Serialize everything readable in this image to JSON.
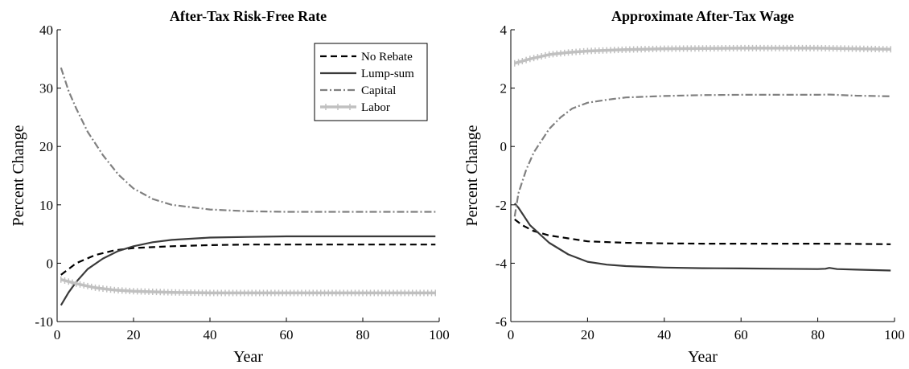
{
  "chart_data": [
    {
      "type": "line",
      "title": "After-Tax Risk-Free Rate",
      "xlabel": "Year",
      "ylabel": "Percent Change",
      "xlim": [
        0,
        100
      ],
      "ylim": [
        -10,
        40
      ],
      "xticks": [
        0,
        20,
        40,
        60,
        80,
        100
      ],
      "yticks": [
        -10,
        0,
        10,
        20,
        30,
        40
      ],
      "grid": false,
      "legend": {
        "position": "top-right",
        "entries": [
          "No Rebate",
          "Lump-sum",
          "Capital",
          "Labor"
        ]
      },
      "series": [
        {
          "name": "No Rebate",
          "style": "dashed",
          "color": "#000000",
          "x": [
            1,
            5,
            10,
            15,
            20,
            30,
            40,
            50,
            60,
            70,
            80,
            90,
            99
          ],
          "y": [
            -2.0,
            0.0,
            1.4,
            2.2,
            2.6,
            2.9,
            3.1,
            3.2,
            3.2,
            3.2,
            3.2,
            3.2,
            3.2
          ]
        },
        {
          "name": "Lump-sum",
          "style": "solid",
          "color": "#3a3a3a",
          "x": [
            1,
            3,
            5,
            8,
            12,
            16,
            20,
            25,
            30,
            40,
            50,
            60,
            70,
            80,
            90,
            99
          ],
          "y": [
            -7.2,
            -5.0,
            -3.2,
            -1.0,
            0.8,
            2.1,
            2.9,
            3.6,
            4.0,
            4.4,
            4.5,
            4.6,
            4.6,
            4.6,
            4.6,
            4.6
          ]
        },
        {
          "name": "Capital",
          "style": "dashdot",
          "color": "#808080",
          "x": [
            1,
            3,
            5,
            8,
            12,
            16,
            20,
            25,
            30,
            40,
            50,
            60,
            70,
            80,
            90,
            99
          ],
          "y": [
            33.5,
            29.5,
            26.5,
            22.5,
            18.5,
            15.2,
            12.8,
            11.0,
            10.0,
            9.2,
            8.9,
            8.8,
            8.8,
            8.8,
            8.8,
            8.8
          ]
        },
        {
          "name": "Labor",
          "style": "marker",
          "color": "#c0c0c0",
          "x": [
            1,
            5,
            10,
            15,
            20,
            30,
            40,
            50,
            60,
            70,
            80,
            90,
            99
          ],
          "y": [
            -2.8,
            -3.5,
            -4.2,
            -4.6,
            -4.8,
            -5.0,
            -5.1,
            -5.1,
            -5.1,
            -5.1,
            -5.1,
            -5.1,
            -5.1
          ]
        }
      ]
    },
    {
      "type": "line",
      "title": "Approximate After-Tax Wage",
      "xlabel": "Year",
      "ylabel": "Percent Change",
      "xlim": [
        0,
        100
      ],
      "ylim": [
        -6,
        4
      ],
      "xticks": [
        0,
        20,
        40,
        60,
        80,
        100
      ],
      "yticks": [
        -6,
        -4,
        -2,
        0,
        2,
        4
      ],
      "grid": false,
      "series": [
        {
          "name": "No Rebate",
          "style": "dashed",
          "color": "#000000",
          "x": [
            1,
            3,
            6,
            10,
            15,
            20,
            30,
            40,
            50,
            60,
            70,
            80,
            90,
            99
          ],
          "y": [
            -2.5,
            -2.7,
            -2.9,
            -3.05,
            -3.15,
            -3.25,
            -3.3,
            -3.32,
            -3.33,
            -3.33,
            -3.33,
            -3.33,
            -3.34,
            -3.35
          ]
        },
        {
          "name": "Lump-sum",
          "style": "solid",
          "color": "#3a3a3a",
          "x": [
            1,
            2,
            5,
            10,
            15,
            20,
            25,
            30,
            40,
            50,
            60,
            70,
            80,
            82,
            83,
            85,
            90,
            99
          ],
          "y": [
            -1.95,
            -2.1,
            -2.7,
            -3.3,
            -3.7,
            -3.95,
            -4.05,
            -4.1,
            -4.15,
            -4.17,
            -4.18,
            -4.19,
            -4.2,
            -4.19,
            -4.16,
            -4.2,
            -4.22,
            -4.25
          ]
        },
        {
          "name": "Capital",
          "style": "dashdot",
          "color": "#808080",
          "x": [
            1,
            2,
            4,
            6,
            8,
            10,
            13,
            16,
            20,
            25,
            30,
            40,
            50,
            60,
            70,
            80,
            83,
            90,
            99
          ],
          "y": [
            -2.4,
            -1.6,
            -0.8,
            -0.2,
            0.2,
            0.6,
            1.0,
            1.3,
            1.5,
            1.6,
            1.68,
            1.73,
            1.76,
            1.77,
            1.77,
            1.77,
            1.78,
            1.74,
            1.72
          ]
        },
        {
          "name": "Labor",
          "style": "marker",
          "color": "#c0c0c0",
          "x": [
            1,
            5,
            10,
            15,
            20,
            30,
            40,
            50,
            60,
            70,
            80,
            90,
            99
          ],
          "y": [
            2.85,
            3.0,
            3.15,
            3.22,
            3.27,
            3.32,
            3.35,
            3.36,
            3.37,
            3.37,
            3.37,
            3.35,
            3.33
          ]
        }
      ]
    }
  ]
}
